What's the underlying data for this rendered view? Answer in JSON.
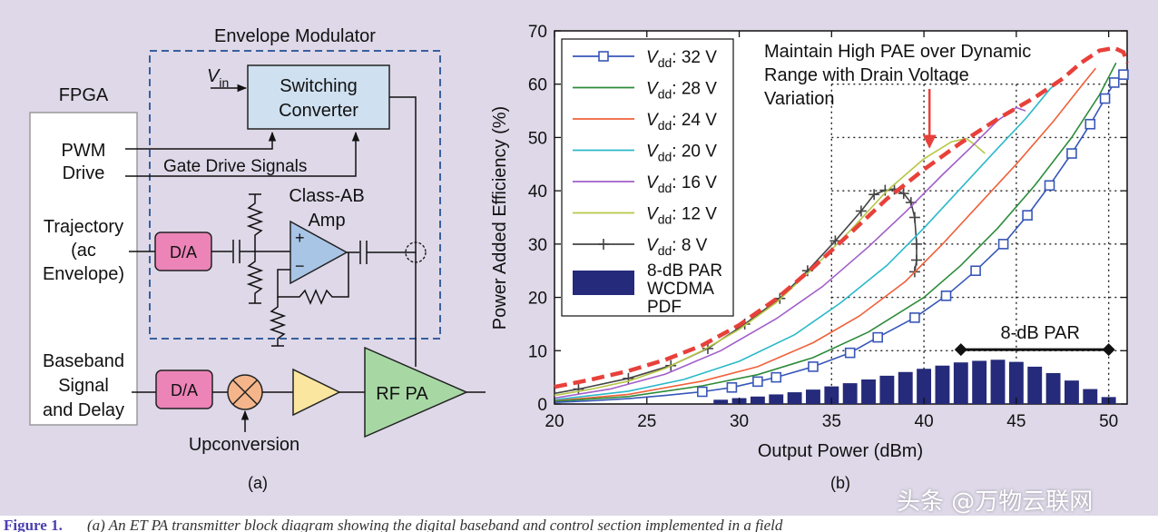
{
  "diagram": {
    "envelope_modulator_title": "Envelope Modulator",
    "fpga_title": "FPGA",
    "vin_main": "V",
    "vin_sub": "in",
    "switching_converter_line1": "Switching",
    "switching_converter_line2": "Converter",
    "pwm_line1": "PWM",
    "pwm_line2": "Drive",
    "gate_drive_signals": "Gate Drive Signals",
    "class_ab_line1": "Class-AB",
    "class_ab_line2": "Amp",
    "trajectory_line1": "Trajectory",
    "trajectory_line2": "(ac",
    "trajectory_line3": "Envelope)",
    "da_top": "D/A",
    "da_bottom": "D/A",
    "opamp_plus": "+",
    "opamp_minus": "−",
    "baseband_line1": "Baseband",
    "baseband_line2": "Signal",
    "baseband_line3": "and Delay",
    "rf_pa": "RF PA",
    "upconversion": "Upconversion",
    "label": "(a)"
  },
  "chart_data": {
    "type": "line",
    "xlabel": "Output Power (dBm)",
    "ylabel": "Power Added Efficiency (%)",
    "xlim": [
      20,
      51
    ],
    "ylim": [
      0,
      70
    ],
    "xticks": [
      20,
      25,
      30,
      35,
      40,
      45,
      50
    ],
    "yticks": [
      0,
      10,
      20,
      30,
      40,
      50,
      60,
      70
    ],
    "grid": "dotted at 35, 40, 45, 50 dBm and 10–60 %",
    "legend_position": "top-left",
    "series": [
      {
        "name_main": "V",
        "name_sub": "dd",
        "name_value": ": 32 V",
        "color": "#3757b8",
        "marker": "square",
        "points": [
          [
            20,
            0.3
          ],
          [
            22,
            0.6
          ],
          [
            24,
            1
          ],
          [
            26,
            1.6
          ],
          [
            28,
            2.3
          ],
          [
            29.6,
            3.1
          ],
          [
            31,
            4.2
          ],
          [
            32,
            5
          ],
          [
            34,
            7
          ],
          [
            36,
            9.6
          ],
          [
            37.5,
            12.5
          ],
          [
            39.5,
            16.2
          ],
          [
            41.2,
            20.3
          ],
          [
            42.8,
            25
          ],
          [
            44.3,
            30
          ],
          [
            45.6,
            35.4
          ],
          [
            46.8,
            41
          ],
          [
            48,
            47
          ],
          [
            49,
            52.5
          ],
          [
            49.8,
            57.3
          ],
          [
            50.3,
            60.3
          ],
          [
            50.8,
            61.8
          ]
        ]
      },
      {
        "name_main": "V",
        "name_sub": "dd",
        "name_value": ": 28 V",
        "color": "#2e8b3a",
        "marker": "none",
        "points": [
          [
            20,
            0.5
          ],
          [
            24,
            1.4
          ],
          [
            28,
            3.4
          ],
          [
            31,
            5.5
          ],
          [
            34,
            8.7
          ],
          [
            37,
            13.5
          ],
          [
            40,
            20
          ],
          [
            42,
            26
          ],
          [
            44,
            33
          ],
          [
            46,
            41
          ],
          [
            48,
            50
          ],
          [
            49.5,
            58
          ],
          [
            50.4,
            64
          ]
        ]
      },
      {
        "name_main": "V",
        "name_sub": "dd",
        "name_value": ": 24 V",
        "color": "#f0603a",
        "marker": "none",
        "points": [
          [
            20,
            0.6
          ],
          [
            24,
            1.8
          ],
          [
            28,
            4.3
          ],
          [
            31,
            7
          ],
          [
            34,
            11.5
          ],
          [
            36.5,
            16.5
          ],
          [
            39,
            23
          ],
          [
            41,
            30
          ],
          [
            43,
            37.5
          ],
          [
            45,
            45
          ],
          [
            47,
            53
          ],
          [
            48.6,
            60
          ],
          [
            49.3,
            63
          ]
        ]
      },
      {
        "name_main": "V",
        "name_sub": "dd",
        "name_value": ": 20 V",
        "color": "#2ab9c9",
        "marker": "none",
        "points": [
          [
            20,
            0.8
          ],
          [
            24,
            2.4
          ],
          [
            27,
            4.6
          ],
          [
            30,
            8
          ],
          [
            33,
            13
          ],
          [
            35.5,
            19
          ],
          [
            38,
            26
          ],
          [
            40,
            33
          ],
          [
            42,
            40.5
          ],
          [
            44,
            48
          ],
          [
            45.5,
            53.5
          ],
          [
            46.8,
            59
          ],
          [
            47.4,
            61
          ]
        ]
      },
      {
        "name_main": "V",
        "name_sub": "dd",
        "name_value": ": 16 V",
        "color": "#a15ec9",
        "marker": "none",
        "points": [
          [
            20,
            1.1
          ],
          [
            23,
            2.8
          ],
          [
            26,
            5.6
          ],
          [
            29,
            10
          ],
          [
            32,
            16
          ],
          [
            34.5,
            22
          ],
          [
            37,
            29.5
          ],
          [
            39,
            36
          ],
          [
            41,
            43
          ],
          [
            42.5,
            48
          ],
          [
            44,
            53.2
          ],
          [
            45,
            55.6
          ],
          [
            45.5,
            55
          ]
        ]
      },
      {
        "name_main": "V",
        "name_sub": "dd",
        "name_value": ": 12 V",
        "color": "#b7c646",
        "marker": "none",
        "points": [
          [
            20,
            1.6
          ],
          [
            22,
            2.8
          ],
          [
            24,
            4.3
          ],
          [
            26,
            6.7
          ],
          [
            28,
            10
          ],
          [
            30,
            14
          ],
          [
            32,
            19
          ],
          [
            34,
            25.5
          ],
          [
            36,
            32.5
          ],
          [
            38,
            40
          ],
          [
            40,
            46
          ],
          [
            41.5,
            49.2
          ],
          [
            42.3,
            49.8
          ],
          [
            42.8,
            48.5
          ],
          [
            43.3,
            47
          ]
        ]
      },
      {
        "name_main": "V",
        "name_sub": "dd",
        "name_value": ": 8 V",
        "color": "#444444",
        "marker": "plus",
        "points": [
          [
            20,
            2
          ],
          [
            21.3,
            2.8
          ],
          [
            24,
            4.8
          ],
          [
            26.3,
            7.2
          ],
          [
            28.3,
            10.4
          ],
          [
            30.3,
            15
          ],
          [
            32.2,
            19.8
          ],
          [
            33.7,
            25
          ],
          [
            35.2,
            30.6
          ],
          [
            36.6,
            36.2
          ],
          [
            37.3,
            39.3
          ],
          [
            37.9,
            40.1
          ],
          [
            38.4,
            40.3
          ],
          [
            38.9,
            39.5
          ],
          [
            39.3,
            37.8
          ],
          [
            39.5,
            35
          ],
          [
            39.6,
            30
          ],
          [
            39.6,
            27
          ],
          [
            39.5,
            24.8
          ]
        ]
      }
    ],
    "envelope_curve": {
      "color": "#e8403a",
      "style": "dashed",
      "points": [
        [
          20,
          3.2
        ],
        [
          22,
          4.6
        ],
        [
          24,
          6.2
        ],
        [
          26,
          8.3
        ],
        [
          28,
          11
        ],
        [
          30,
          14.8
        ],
        [
          32,
          19.7
        ],
        [
          34,
          25.6
        ],
        [
          36,
          32
        ],
        [
          38,
          38.5
        ],
        [
          40,
          44
        ],
        [
          42,
          49
        ],
        [
          44,
          53.5
        ],
        [
          46,
          57.5
        ],
        [
          47.5,
          61
        ],
        [
          48.5,
          64
        ],
        [
          49.5,
          66.3
        ],
        [
          50.3,
          66.8
        ],
        [
          50.8,
          66
        ],
        [
          51,
          64
        ]
      ]
    },
    "annotation_line1": "Maintain High PAE over Dynamic",
    "annotation_line2": "Range with Drain Voltage",
    "annotation_line3": "Variation",
    "annotation_arrow_at": [
      40.3,
      47.5
    ],
    "par_label": "8-dB PAR",
    "par_span": [
      42,
      50
    ],
    "par_y": 10.2,
    "pdf_series": {
      "name_line1": "8-dB PAR",
      "name_line2": "WCDMA",
      "name_line3": "PDF",
      "color": "#252a7a",
      "x": [
        29,
        30,
        31,
        32,
        33,
        34,
        35,
        36,
        37,
        38,
        39,
        40,
        41,
        42,
        43,
        44,
        45,
        46,
        47,
        48,
        49,
        50
      ],
      "values": [
        0.8,
        1.1,
        1.4,
        1.8,
        2.2,
        2.7,
        3.3,
        3.9,
        4.6,
        5.3,
        6.0,
        6.6,
        7.2,
        7.8,
        8.1,
        8.3,
        7.9,
        7.0,
        5.8,
        4.4,
        2.8,
        1.3
      ]
    },
    "label": "(b)"
  },
  "watermark": "头条 @万物云联网",
  "caption": {
    "fig_no": "Figure 1.",
    "text": "(a) An ET PA transmitter block diagram showing the digital baseband and control section implemented in a field"
  }
}
